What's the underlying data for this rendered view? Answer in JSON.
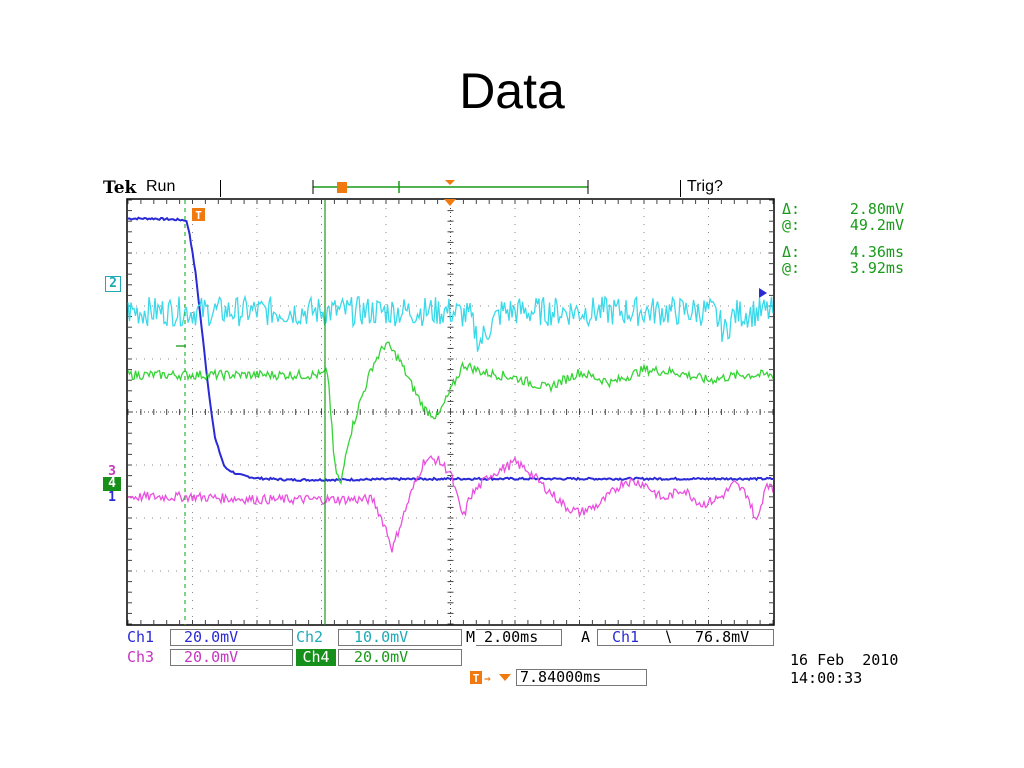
{
  "slide": {
    "title": "Data"
  },
  "header": {
    "brand": "Tek",
    "status": "Run",
    "trigger_status": "Trig?"
  },
  "measurements": [
    {
      "symbol": "Δ:",
      "value": "2.80mV"
    },
    {
      "symbol": "@:",
      "value": "49.2mV"
    },
    {
      "symbol": "Δ:",
      "value": "4.36ms"
    },
    {
      "symbol": "@:",
      "value": "3.92ms"
    }
  ],
  "channel_markers": [
    "2",
    "3",
    "4",
    "1"
  ],
  "settings": {
    "ch1_label": "Ch1",
    "ch1_scale": "20.0mV",
    "ch2_label": "Ch2",
    "ch2_scale": "10.0mV",
    "ch3_label": "Ch3",
    "ch3_scale": "20.0mV",
    "ch4_label": "Ch4",
    "ch4_scale": "20.0mV",
    "timebase": "M 2.00ms",
    "trigger_mode": "A",
    "trigger_source": "Ch1",
    "trigger_slope": "∖",
    "trigger_level": "76.8mV",
    "trigger_position": "7.84000ms"
  },
  "timestamp": {
    "date": "16 Feb  2010",
    "time": "14:00:33"
  },
  "colors": {
    "ch1": "#2a2ad6",
    "ch2": "#39d9ea",
    "ch3": "#ea4fe0",
    "ch4": "#35d435",
    "grid": "#000000"
  },
  "chart_data": {
    "type": "line",
    "title": "",
    "xlabel": "",
    "ylabel": "",
    "x_divisions": 10,
    "y_divisions": 8,
    "grid": true,
    "series": [
      {
        "name": "Ch1",
        "color": "#2a2ad6",
        "x": [
          0,
          0.4,
          0.9,
          0.95,
          1.05,
          1.15,
          1.25,
          1.35,
          1.5,
          1.7,
          2.0,
          2.5,
          3.0,
          4.0,
          5.0,
          6.0,
          7.0,
          8.0,
          9.0,
          10.0
        ],
        "y": [
          3.65,
          3.65,
          3.62,
          3.4,
          2.6,
          1.5,
          0.4,
          -0.5,
          -1.05,
          -1.18,
          -1.25,
          -1.28,
          -1.28,
          -1.27,
          -1.26,
          -1.26,
          -1.26,
          -1.26,
          -1.26,
          -1.26
        ]
      },
      {
        "name": "Ch2",
        "color": "#39d9ea",
        "x": [
          0,
          1,
          2,
          3,
          4,
          5,
          5.3,
          5.45,
          5.6,
          5.8,
          6,
          7,
          8,
          9,
          9.1,
          9.25,
          9.4,
          10
        ],
        "y": [
          1.9,
          1.9,
          1.9,
          1.9,
          1.9,
          1.9,
          1.8,
          1.3,
          1.6,
          1.9,
          1.9,
          1.9,
          1.9,
          1.9,
          1.85,
          1.5,
          1.85,
          1.9
        ]
      },
      {
        "name": "Ch4",
        "color": "#35d435",
        "x": [
          0,
          1,
          2,
          3,
          3.1,
          3.2,
          3.3,
          3.4,
          3.6,
          3.8,
          4.0,
          4.2,
          4.4,
          4.6,
          4.8,
          5.0,
          5.2,
          5.5,
          6.0,
          6.5,
          7.0,
          7.5,
          8.0,
          8.5,
          9.0,
          9.5,
          10.0
        ],
        "y": [
          0.7,
          0.7,
          0.7,
          0.7,
          0.75,
          -1.0,
          -1.4,
          -0.6,
          0.2,
          0.9,
          1.3,
          1.0,
          0.5,
          0.05,
          -0.1,
          0.4,
          0.9,
          0.75,
          0.65,
          0.45,
          0.75,
          0.55,
          0.8,
          0.75,
          0.6,
          0.7,
          0.7
        ]
      },
      {
        "name": "Ch3",
        "color": "#ea4fe0",
        "x": [
          0,
          1,
          2,
          3,
          3.8,
          4.0,
          4.1,
          4.2,
          4.4,
          4.6,
          4.8,
          5.0,
          5.1,
          5.2,
          5.3,
          5.6,
          6.0,
          6.2,
          6.4,
          6.8,
          7.0,
          7.3,
          7.7,
          8.0,
          8.3,
          8.6,
          8.9,
          9.2,
          9.4,
          9.6,
          9.75,
          9.9,
          10
        ],
        "y": [
          -1.6,
          -1.6,
          -1.65,
          -1.65,
          -1.65,
          -2.2,
          -2.6,
          -2.2,
          -1.5,
          -0.9,
          -0.9,
          -1.15,
          -1.6,
          -2.0,
          -1.6,
          -1.2,
          -0.95,
          -1.1,
          -1.35,
          -1.8,
          -1.9,
          -1.75,
          -1.3,
          -1.35,
          -1.65,
          -1.45,
          -1.75,
          -1.6,
          -1.35,
          -1.55,
          -2.1,
          -1.3,
          -1.5
        ]
      }
    ]
  }
}
